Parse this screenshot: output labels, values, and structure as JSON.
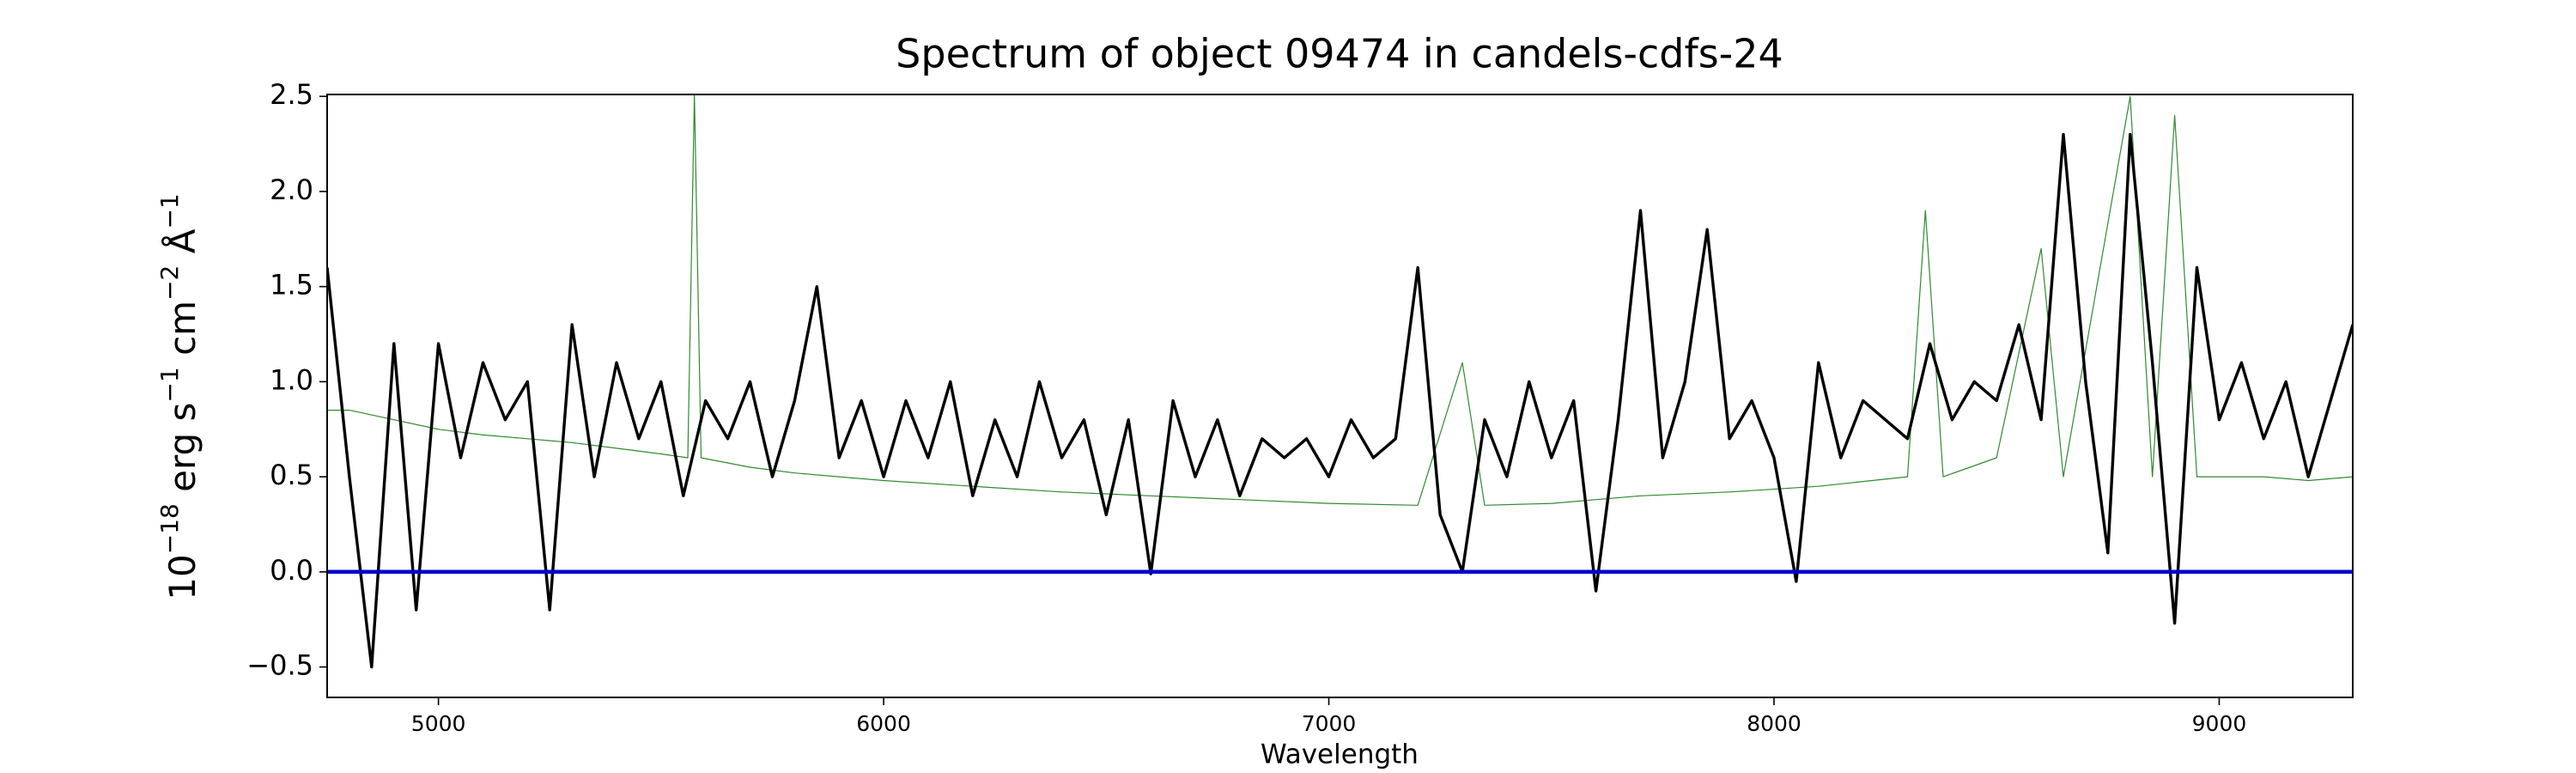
{
  "chart_data": {
    "type": "line",
    "title": "Spectrum of object 09474 in candels-cdfs-24",
    "xlabel": "Wavelength",
    "ylabel": [
      "10",
      "−18",
      " erg s",
      "−1",
      " cm",
      "−2",
      " Å",
      "−1"
    ],
    "xlim": [
      4750,
      9300
    ],
    "ylim": [
      -0.66,
      2.51
    ],
    "xticks": [
      5000,
      6000,
      7000,
      8000,
      9000
    ],
    "yticks": [
      2.5,
      {
        "value": 2,
        "label": "2.0"
      },
      1.5,
      {
        "value": 1,
        "label": "1.0"
      },
      0.5,
      {
        "value": 0,
        "label": "0.0"
      },
      {
        "value": -0.5,
        "label": "−0.5"
      }
    ],
    "series": [
      {
        "color": "#2e8b2e",
        "width": 1.2,
        "x": [
          4750,
          4800,
          4900,
          5000,
          5100,
          5200,
          5300,
          5400,
          5500,
          5560,
          5575,
          5590,
          5700,
          5800,
          5900,
          6000,
          6200,
          6400,
          6600,
          6800,
          7000,
          7200,
          7300,
          7350,
          7500,
          7700,
          7900,
          8100,
          8300,
          8340,
          8380,
          8500,
          8600,
          8650,
          8800,
          8850,
          8900,
          8950,
          9100,
          9200,
          9300
        ],
        "values": [
          0.85,
          0.85,
          0.8,
          0.75,
          0.72,
          0.7,
          0.68,
          0.65,
          0.62,
          0.6,
          2.51,
          0.6,
          0.55,
          0.52,
          0.5,
          0.48,
          0.45,
          0.42,
          0.4,
          0.38,
          0.36,
          0.35,
          1.1,
          0.35,
          0.36,
          0.4,
          0.42,
          0.45,
          0.5,
          1.9,
          0.5,
          0.6,
          1.7,
          0.5,
          2.5,
          0.5,
          2.4,
          0.5,
          0.5,
          0.48,
          0.5
        ]
      },
      {
        "color": "#000000",
        "width": 3.4,
        "x": [
          4750,
          4800,
          4850,
          4900,
          4950,
          5000,
          5050,
          5100,
          5150,
          5200,
          5250,
          5300,
          5350,
          5400,
          5450,
          5500,
          5550,
          5600,
          5650,
          5700,
          5750,
          5800,
          5850,
          5900,
          5950,
          6000,
          6050,
          6100,
          6150,
          6200,
          6250,
          6300,
          6350,
          6400,
          6450,
          6500,
          6550,
          6600,
          6650,
          6700,
          6750,
          6800,
          6850,
          6900,
          6950,
          7000,
          7050,
          7100,
          7150,
          7200,
          7250,
          7300,
          7350,
          7400,
          7450,
          7500,
          7550,
          7600,
          7650,
          7700,
          7750,
          7800,
          7850,
          7900,
          7950,
          8000,
          8050,
          8100,
          8150,
          8200,
          8250,
          8300,
          8350,
          8400,
          8450,
          8500,
          8550,
          8600,
          8650,
          8700,
          8750,
          8800,
          8850,
          8900,
          8950,
          9000,
          9050,
          9100,
          9150,
          9200,
          9250,
          9300
        ],
        "values": [
          1.6,
          0.5,
          -0.5,
          1.2,
          -0.2,
          1.2,
          0.6,
          1.1,
          0.8,
          1.0,
          -0.2,
          1.3,
          0.5,
          1.1,
          0.7,
          1.0,
          0.4,
          0.9,
          0.7,
          1.0,
          0.5,
          0.9,
          1.5,
          0.6,
          0.9,
          0.5,
          0.9,
          0.6,
          1.0,
          0.4,
          0.8,
          0.5,
          1.0,
          0.6,
          0.8,
          0.3,
          0.8,
          -0.01,
          0.9,
          0.5,
          0.8,
          0.4,
          0.7,
          0.6,
          0.7,
          0.5,
          0.8,
          0.6,
          0.7,
          1.6,
          0.3,
          0.0,
          0.8,
          0.5,
          1.0,
          0.6,
          0.9,
          -0.1,
          0.8,
          1.9,
          0.6,
          1.0,
          1.8,
          0.7,
          0.9,
          0.6,
          -0.05,
          1.1,
          0.6,
          0.9,
          0.8,
          0.7,
          1.2,
          0.8,
          1.0,
          0.9,
          1.3,
          0.8,
          2.3,
          1.0,
          0.1,
          2.3,
          1.1,
          -0.27,
          1.6,
          0.8,
          1.1,
          0.7,
          1.0,
          0.5,
          0.9,
          1.3
        ]
      },
      {
        "color": "#0000cc",
        "width": 4.5,
        "x": [
          4750,
          9300
        ],
        "values": [
          0,
          0
        ]
      }
    ]
  }
}
